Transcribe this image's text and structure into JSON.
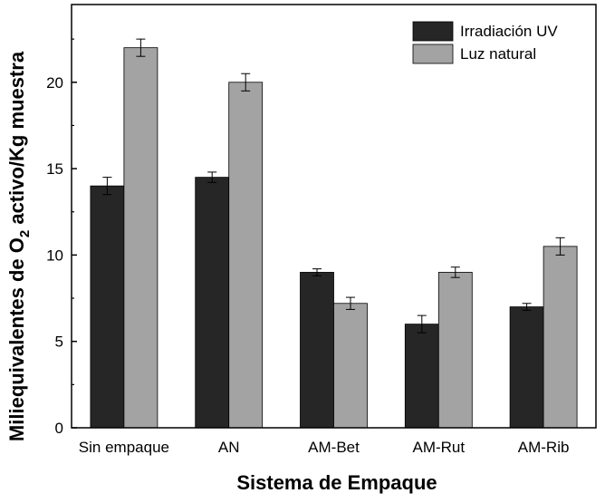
{
  "chart_data": {
    "type": "bar",
    "xlabel": "Sistema de Empaque",
    "ylabel_parts": {
      "before": "Miliequivalentes de O",
      "subscript": "2",
      "after": " activo/Kg muestra"
    },
    "categories": [
      "Sin empaque",
      "AN",
      "AM-Bet",
      "AM-Rut",
      "AM-Rib"
    ],
    "series": [
      {
        "name": "Irradiación UV",
        "color": "#262626",
        "values": [
          14.0,
          14.5,
          9.0,
          6.0,
          7.0
        ],
        "errors": [
          0.5,
          0.3,
          0.2,
          0.5,
          0.2
        ]
      },
      {
        "name": "Luz natural",
        "color": "#a3a3a3",
        "values": [
          22.0,
          20.0,
          7.2,
          9.0,
          10.5
        ],
        "errors": [
          0.5,
          0.5,
          0.35,
          0.3,
          0.5
        ]
      }
    ],
    "ylim": [
      0,
      24.5
    ],
    "yticks": [
      0,
      5,
      10,
      15,
      20
    ],
    "grid": false,
    "legend_position": "top-right"
  }
}
